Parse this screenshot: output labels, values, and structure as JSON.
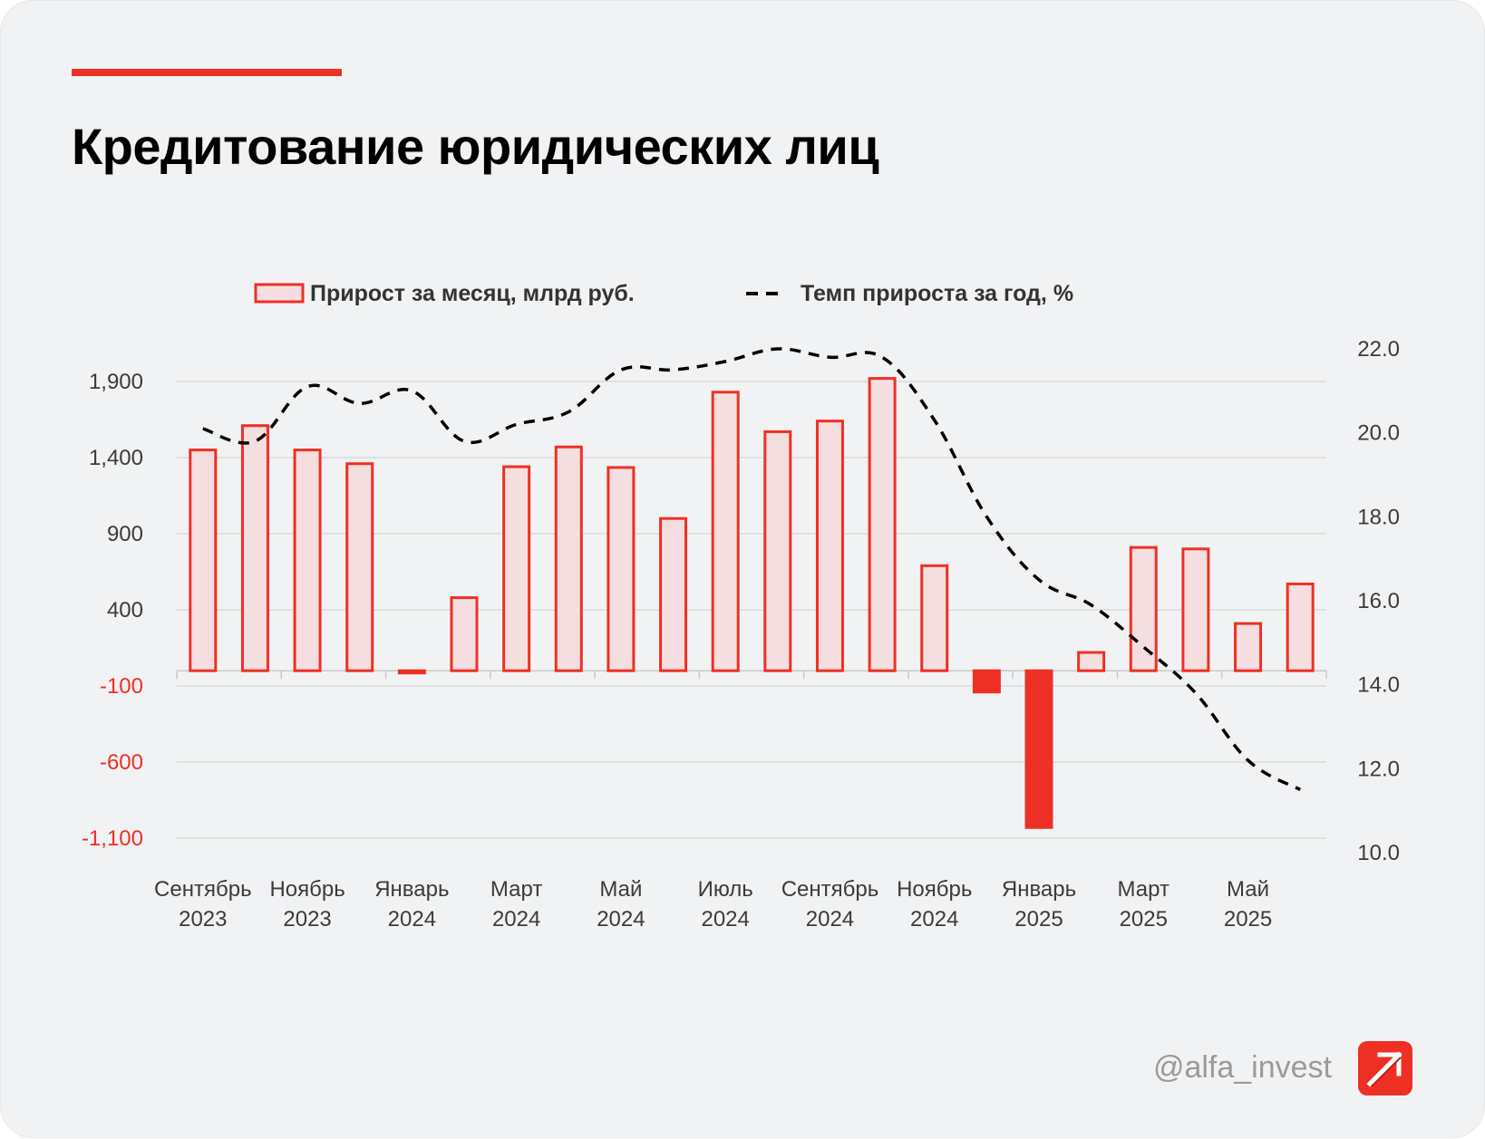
{
  "header": {
    "title": "Кредитование юридических лиц"
  },
  "footer": {
    "handle": "@alfa_invest",
    "logo_icon": "alfa-arrow-logo-icon"
  },
  "colors": {
    "accent": "#ee3024",
    "bar_fill": "#f5dedf",
    "negative_fill": "#ee3024",
    "line": "#000000",
    "grid": "#d9d9d9",
    "background": "#f1f2f4"
  },
  "chart_data": {
    "type": "bar",
    "combo": "bar + dashed line (secondary axis)",
    "categories": [
      "Сентябрь 2023",
      "Октябрь 2023",
      "Ноябрь 2023",
      "Декабрь 2023",
      "Январь 2024",
      "Февраль 2024",
      "Март 2024",
      "Апрель 2024",
      "Май 2024",
      "Июнь 2024",
      "Июль 2024",
      "Август 2024",
      "Сентябрь 2024",
      "Октябрь 2024",
      "Ноябрь 2024",
      "Декабрь 2024",
      "Январь 2025",
      "Февраль 2025",
      "Март 2025",
      "Апрель 2025",
      "Май 2025",
      "Июнь 2025"
    ],
    "x_tick_labels": [
      {
        "month": "Сентябрь",
        "year": "2023"
      },
      {
        "month": "Ноябрь",
        "year": "2023"
      },
      {
        "month": "Январь",
        "year": "2024"
      },
      {
        "month": "Март",
        "year": "2024"
      },
      {
        "month": "Май",
        "year": "2024"
      },
      {
        "month": "Июль",
        "year": "2024"
      },
      {
        "month": "Сентябрь",
        "year": "2024"
      },
      {
        "month": "Ноябрь",
        "year": "2024"
      },
      {
        "month": "Январь",
        "year": "2025"
      },
      {
        "month": "Март",
        "year": "2025"
      },
      {
        "month": "Май",
        "year": "2025"
      }
    ],
    "series": [
      {
        "name": "Прирост за месяц, млрд руб.",
        "type": "bar",
        "axis": "left",
        "values": [
          1450,
          1610,
          1450,
          1360,
          -15,
          480,
          1340,
          1470,
          1335,
          1000,
          1830,
          1570,
          1640,
          1920,
          690,
          -140,
          -1030,
          120,
          810,
          800,
          310,
          570
        ]
      },
      {
        "name": "Темп прироста за год, %",
        "type": "line",
        "style": "dashed",
        "axis": "right",
        "values": [
          20.1,
          19.8,
          21.1,
          20.7,
          21.0,
          19.8,
          20.2,
          20.5,
          21.5,
          21.5,
          21.7,
          22.0,
          21.8,
          21.8,
          20.3,
          18.0,
          16.5,
          15.9,
          14.9,
          13.8,
          12.2,
          11.5
        ]
      }
    ],
    "y_left": {
      "ticks": [
        1900,
        1400,
        900,
        400,
        -100,
        -600,
        -1100
      ],
      "tick_labels": [
        "1,900",
        "1,400",
        "900",
        "400",
        "-100",
        "-600",
        "-1,100"
      ],
      "range": [
        -1100,
        2200
      ]
    },
    "y_right": {
      "ticks": [
        22.0,
        20.0,
        18.0,
        16.0,
        14.0,
        12.0,
        10.0
      ],
      "tick_labels": [
        "22.0",
        "20.0",
        "18.0",
        "16.0",
        "14.0",
        "12.0",
        "10.0"
      ],
      "range": [
        10,
        22
      ]
    },
    "grid": true,
    "legend_position": "top-center"
  }
}
